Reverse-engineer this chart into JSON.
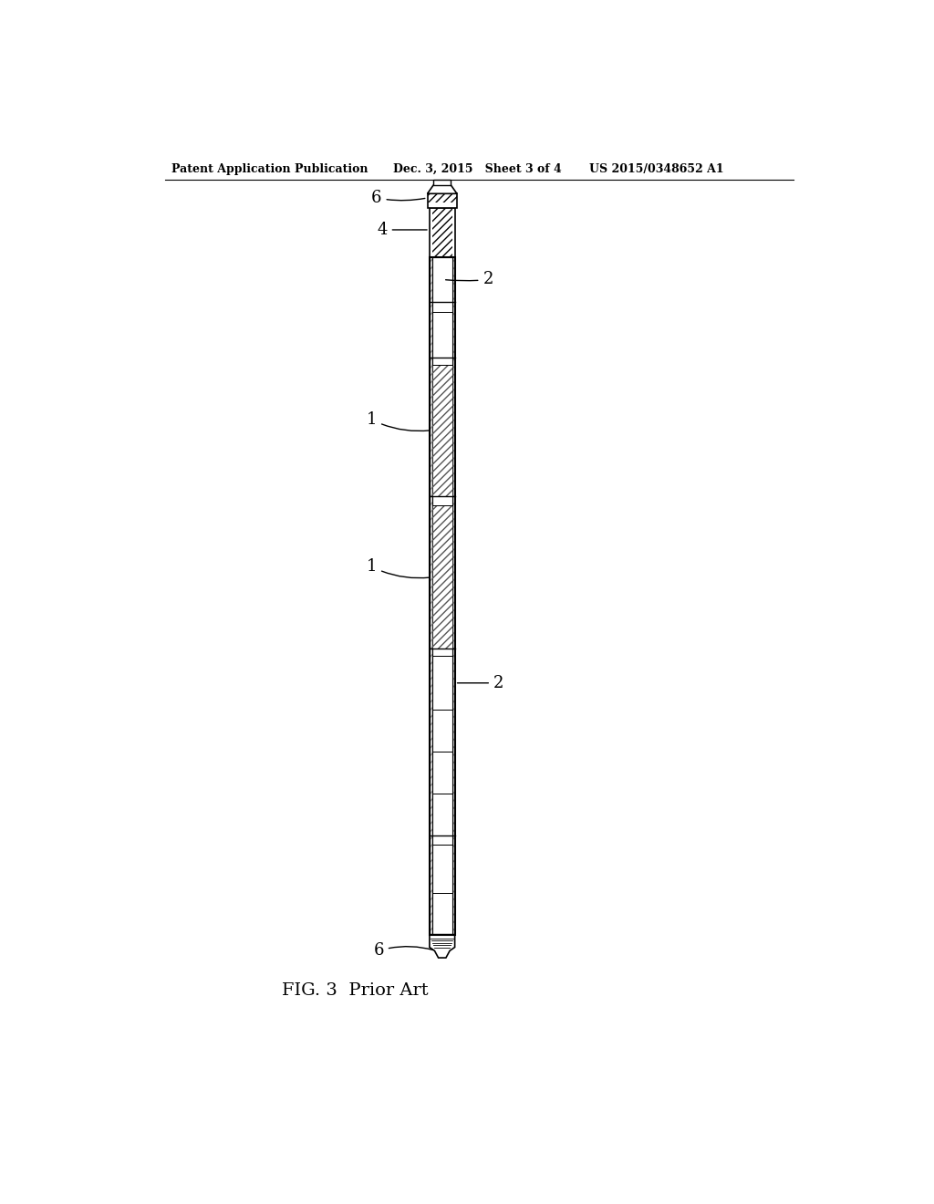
{
  "background_color": "#ffffff",
  "header_left": "Patent Application Publication",
  "header_mid": "Dec. 3, 2015   Sheet 3 of 4",
  "header_right": "US 2015/0348652 A1",
  "caption": "FIG. 3  Prior Art",
  "line_color": "#000000"
}
